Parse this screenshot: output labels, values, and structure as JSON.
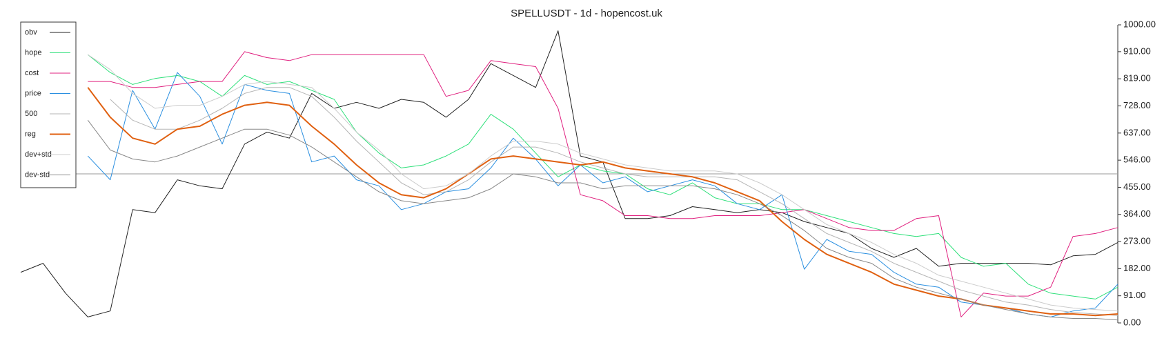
{
  "chart_data": {
    "type": "line",
    "title": "SPELLUSDT - 1d - hopencost.uk",
    "ylim": [
      0,
      1000
    ],
    "yticks": [
      {
        "value": 0,
        "label": "0.00"
      },
      {
        "value": 91,
        "label": "91.00"
      },
      {
        "value": 182,
        "label": "182.00"
      },
      {
        "value": 273,
        "label": "273.00"
      },
      {
        "value": 364,
        "label": "364.00"
      },
      {
        "value": 455,
        "label": "455.00"
      },
      {
        "value": 546,
        "label": "546.00"
      },
      {
        "value": 637,
        "label": "637.00"
      },
      {
        "value": 728,
        "label": "728.00"
      },
      {
        "value": 819,
        "label": "819.00"
      },
      {
        "value": 910,
        "label": "910.00"
      },
      {
        "value": 1000,
        "label": "1000.00"
      }
    ],
    "hline": 500,
    "legend": "upper left",
    "series": [
      {
        "name": "obv",
        "color": "#222222",
        "width": 1,
        "values": [
          170,
          200,
          100,
          20,
          40,
          380,
          370,
          480,
          460,
          450,
          600,
          640,
          620,
          770,
          720,
          740,
          720,
          750,
          740,
          690,
          750,
          870,
          830,
          790,
          980,
          560,
          540,
          350,
          350,
          360,
          390,
          380,
          370,
          380,
          370,
          340,
          320,
          300,
          250,
          220,
          250,
          190,
          200,
          200,
          200,
          200,
          195,
          225,
          230,
          270
        ]
      },
      {
        "name": "hope",
        "color": "#2ee07a",
        "width": 1,
        "values": [
          null,
          null,
          null,
          900,
          840,
          800,
          820,
          830,
          810,
          760,
          830,
          800,
          810,
          780,
          750,
          640,
          570,
          520,
          530,
          560,
          600,
          700,
          650,
          570,
          490,
          530,
          510,
          500,
          450,
          430,
          470,
          420,
          400,
          400,
          380,
          380,
          360,
          340,
          320,
          300,
          290,
          300,
          220,
          190,
          200,
          130,
          100,
          90,
          80,
          120
        ]
      },
      {
        "name": "cost",
        "color": "#e0207f",
        "width": 1,
        "values": [
          null,
          null,
          null,
          810,
          810,
          790,
          790,
          800,
          810,
          810,
          910,
          890,
          880,
          900,
          900,
          900,
          900,
          900,
          900,
          760,
          780,
          880,
          870,
          860,
          720,
          430,
          410,
          360,
          360,
          350,
          350,
          360,
          360,
          360,
          370,
          380,
          350,
          320,
          310,
          310,
          350,
          360,
          20,
          100,
          90,
          90,
          120,
          290,
          300,
          320
        ]
      },
      {
        "name": "price",
        "color": "#2a8fe0",
        "width": 1,
        "values": [
          null,
          null,
          null,
          560,
          480,
          780,
          650,
          840,
          760,
          600,
          800,
          780,
          770,
          540,
          560,
          480,
          460,
          380,
          400,
          440,
          450,
          520,
          620,
          550,
          460,
          530,
          470,
          490,
          440,
          460,
          480,
          460,
          400,
          380,
          430,
          180,
          280,
          240,
          230,
          170,
          130,
          120,
          70,
          60,
          50,
          30,
          20,
          40,
          50,
          130
        ]
      },
      {
        "name": "500",
        "color": "#b5b5b5",
        "width": 1,
        "values": [
          null,
          null,
          null,
          null,
          750,
          680,
          650,
          650,
          680,
          720,
          770,
          790,
          790,
          760,
          690,
          610,
          540,
          470,
          430,
          440,
          480,
          540,
          590,
          590,
          570,
          540,
          520,
          500,
          490,
          490,
          490,
          490,
          480,
          440,
          400,
          350,
          300,
          270,
          240,
          200,
          170,
          140,
          110,
          90,
          70,
          60,
          45,
          35,
          30,
          25
        ]
      },
      {
        "name": "reg",
        "color": "#e06010",
        "width": 2,
        "values": [
          null,
          null,
          null,
          790,
          690,
          620,
          600,
          650,
          660,
          700,
          730,
          740,
          730,
          660,
          600,
          530,
          470,
          430,
          420,
          450,
          500,
          550,
          560,
          550,
          540,
          530,
          540,
          520,
          510,
          500,
          490,
          470,
          440,
          410,
          340,
          280,
          230,
          200,
          170,
          130,
          110,
          90,
          80,
          60,
          50,
          40,
          30,
          30,
          25,
          30
        ]
      },
      {
        "name": "dev+std",
        "color": "#cccccc",
        "width": 1,
        "values": [
          null,
          null,
          null,
          900,
          850,
          770,
          720,
          730,
          730,
          760,
          800,
          810,
          800,
          790,
          720,
          640,
          580,
          500,
          450,
          460,
          500,
          560,
          610,
          610,
          600,
          570,
          550,
          530,
          520,
          510,
          510,
          510,
          500,
          470,
          430,
          380,
          330,
          300,
          270,
          230,
          200,
          160,
          140,
          120,
          100,
          80,
          60,
          50,
          45,
          40
        ]
      },
      {
        "name": "dev-std",
        "color": "#888888",
        "width": 1,
        "values": [
          null,
          null,
          null,
          680,
          580,
          550,
          540,
          560,
          590,
          620,
          650,
          650,
          630,
          590,
          540,
          490,
          440,
          410,
          400,
          410,
          420,
          450,
          500,
          490,
          470,
          470,
          450,
          460,
          460,
          460,
          460,
          450,
          430,
          400,
          360,
          310,
          250,
          220,
          200,
          150,
          120,
          100,
          80,
          60,
          45,
          30,
          20,
          15,
          15,
          10
        ]
      }
    ]
  }
}
